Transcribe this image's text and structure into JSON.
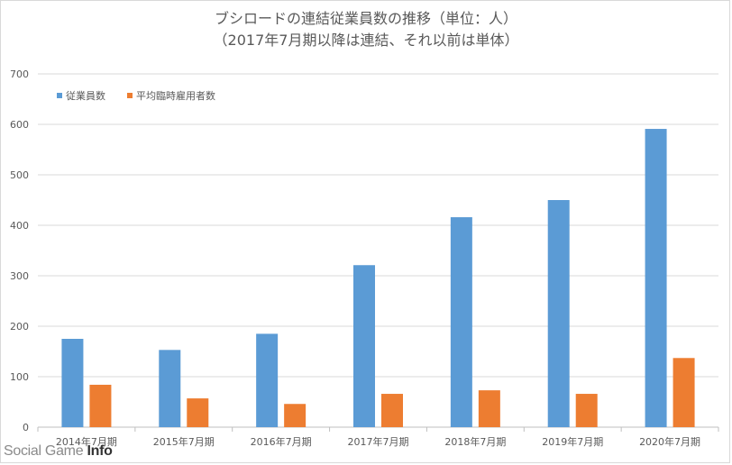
{
  "chart_data": {
    "type": "bar",
    "title": "ブシロードの連結従業員数の推移（単位：人）",
    "subtitle": "（2017年7月期以降は連結、それ以前は単体）",
    "categories": [
      "2014年7月期",
      "2015年7月期",
      "2016年7月期",
      "2017年7月期",
      "2018年7月期",
      "2019年7月期",
      "2020年7月期"
    ],
    "series": [
      {
        "name": "従業員数",
        "color": "#5b9bd5",
        "values": [
          175,
          153,
          185,
          321,
          416,
          450,
          591
        ]
      },
      {
        "name": "平均臨時雇用者数",
        "color": "#ed7d31",
        "values": [
          84,
          57,
          46,
          66,
          73,
          66,
          137
        ]
      }
    ],
    "ylim": [
      0,
      700
    ],
    "yticks": [
      "0",
      "100",
      "200",
      "300",
      "400",
      "500",
      "600",
      "700"
    ],
    "grid": true,
    "legend_position": "top-left"
  },
  "watermark": {
    "prefix": "Social Game ",
    "suffix": "Info"
  }
}
